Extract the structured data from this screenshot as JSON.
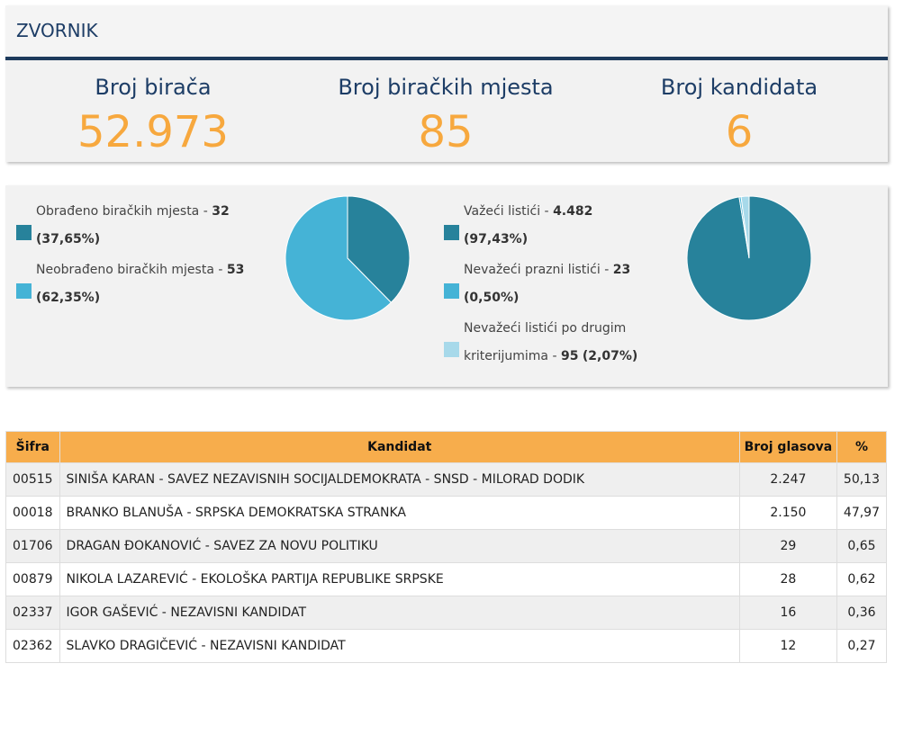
{
  "header": {
    "title": "ZVORNIK"
  },
  "stats": [
    {
      "label": "Broj birača",
      "value": "52.973"
    },
    {
      "label": "Broj biračkih mjesta",
      "value": "85"
    },
    {
      "label": "Broj kandidata",
      "value": "6"
    }
  ],
  "colors": {
    "dark_teal": "#27829b",
    "light_blue": "#45b3d6",
    "pale_blue": "#a7d9ea",
    "accent_orange": "#f7a83e",
    "navy": "#1d3d66"
  },
  "stations_legend": [
    {
      "text": "Obrađeno biračkih mjesta - ",
      "count": "32",
      "pct": "(37,65%)"
    },
    {
      "text": "Neobrađeno biračkih mjesta - ",
      "count": "53",
      "pct": "(62,35%)"
    }
  ],
  "ballots_legend": [
    {
      "text": "Važeći listići - ",
      "count": "4.482",
      "pct": "(97,43%)"
    },
    {
      "text": "Nevažeći prazni listići - ",
      "count": "23",
      "pct": "(0,50%)"
    },
    {
      "text": "Nevažeći listići po drugim kriterijumima - ",
      "count": "95",
      "pct": "(2,07%)"
    }
  ],
  "chart_data": [
    {
      "type": "pie",
      "categories": [
        "Obrađeno biračkih mjesta",
        "Neobrađeno biračkih mjesta"
      ],
      "values": [
        37.65,
        62.35
      ]
    },
    {
      "type": "pie",
      "categories": [
        "Važeći listići",
        "Nevažeći prazni listići",
        "Nevažeći listići po drugim kriterijumima"
      ],
      "values": [
        97.43,
        0.5,
        2.07
      ]
    }
  ],
  "table": {
    "headers": [
      "Šifra",
      "Kandidat",
      "Broj glasova",
      "%"
    ],
    "rows": [
      {
        "code": "00515",
        "candidate": "SINIŠA KARAN - SAVEZ NEZAVISNIH SOCIJALDEMOKRATA - SNSD - MILORAD DODIK",
        "votes": "2.247",
        "pct": "50,13"
      },
      {
        "code": "00018",
        "candidate": "BRANKO BLANUŠA - SRPSKA DEMOKRATSKA STRANKA",
        "votes": "2.150",
        "pct": "47,97"
      },
      {
        "code": "01706",
        "candidate": "DRAGAN ĐOKANOVIĆ - SAVEZ ZA NOVU POLITIKU",
        "votes": "29",
        "pct": "0,65"
      },
      {
        "code": "00879",
        "candidate": "NIKOLA LAZAREVIĆ - EKOLOŠKA PARTIJA REPUBLIKE SRPSKE",
        "votes": "28",
        "pct": "0,62"
      },
      {
        "code": "02337",
        "candidate": "IGOR GAŠEVIĆ - NEZAVISNI KANDIDAT",
        "votes": "16",
        "pct": "0,36"
      },
      {
        "code": "02362",
        "candidate": "SLAVKO DRAGIČEVIĆ - NEZAVISNI KANDIDAT",
        "votes": "12",
        "pct": "0,27"
      }
    ]
  }
}
